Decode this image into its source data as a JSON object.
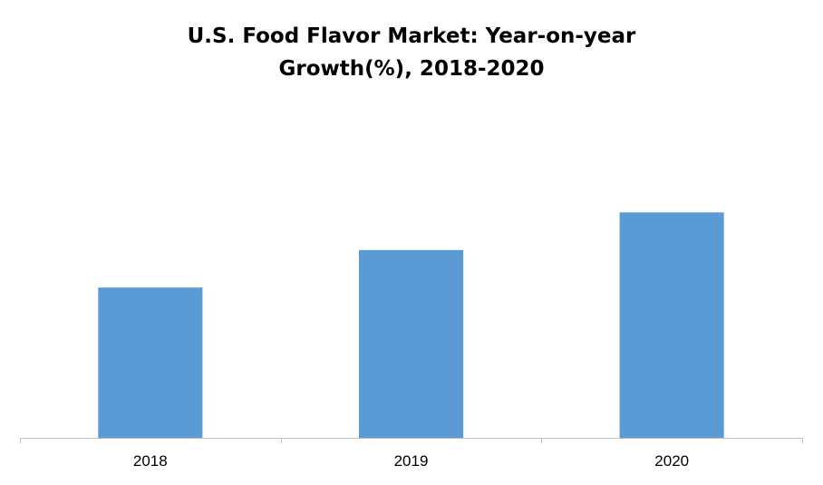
{
  "chart_data": {
    "type": "bar",
    "title_lines": [
      "U.S. Food Flavor Market: Year-on-year",
      "Growth(%), 2018-2020"
    ],
    "categories": [
      "2018",
      "2019",
      "2020"
    ],
    "series": [
      {
        "values": [
          6,
          7.5,
          9
        ]
      }
    ],
    "xlabel": "",
    "ylabel": "",
    "ylim": [
      0,
      13.5
    ],
    "grid": false,
    "legend": "none",
    "colors": {
      "bar": "#5b9bd5",
      "axis": "#bfbfbf"
    }
  }
}
